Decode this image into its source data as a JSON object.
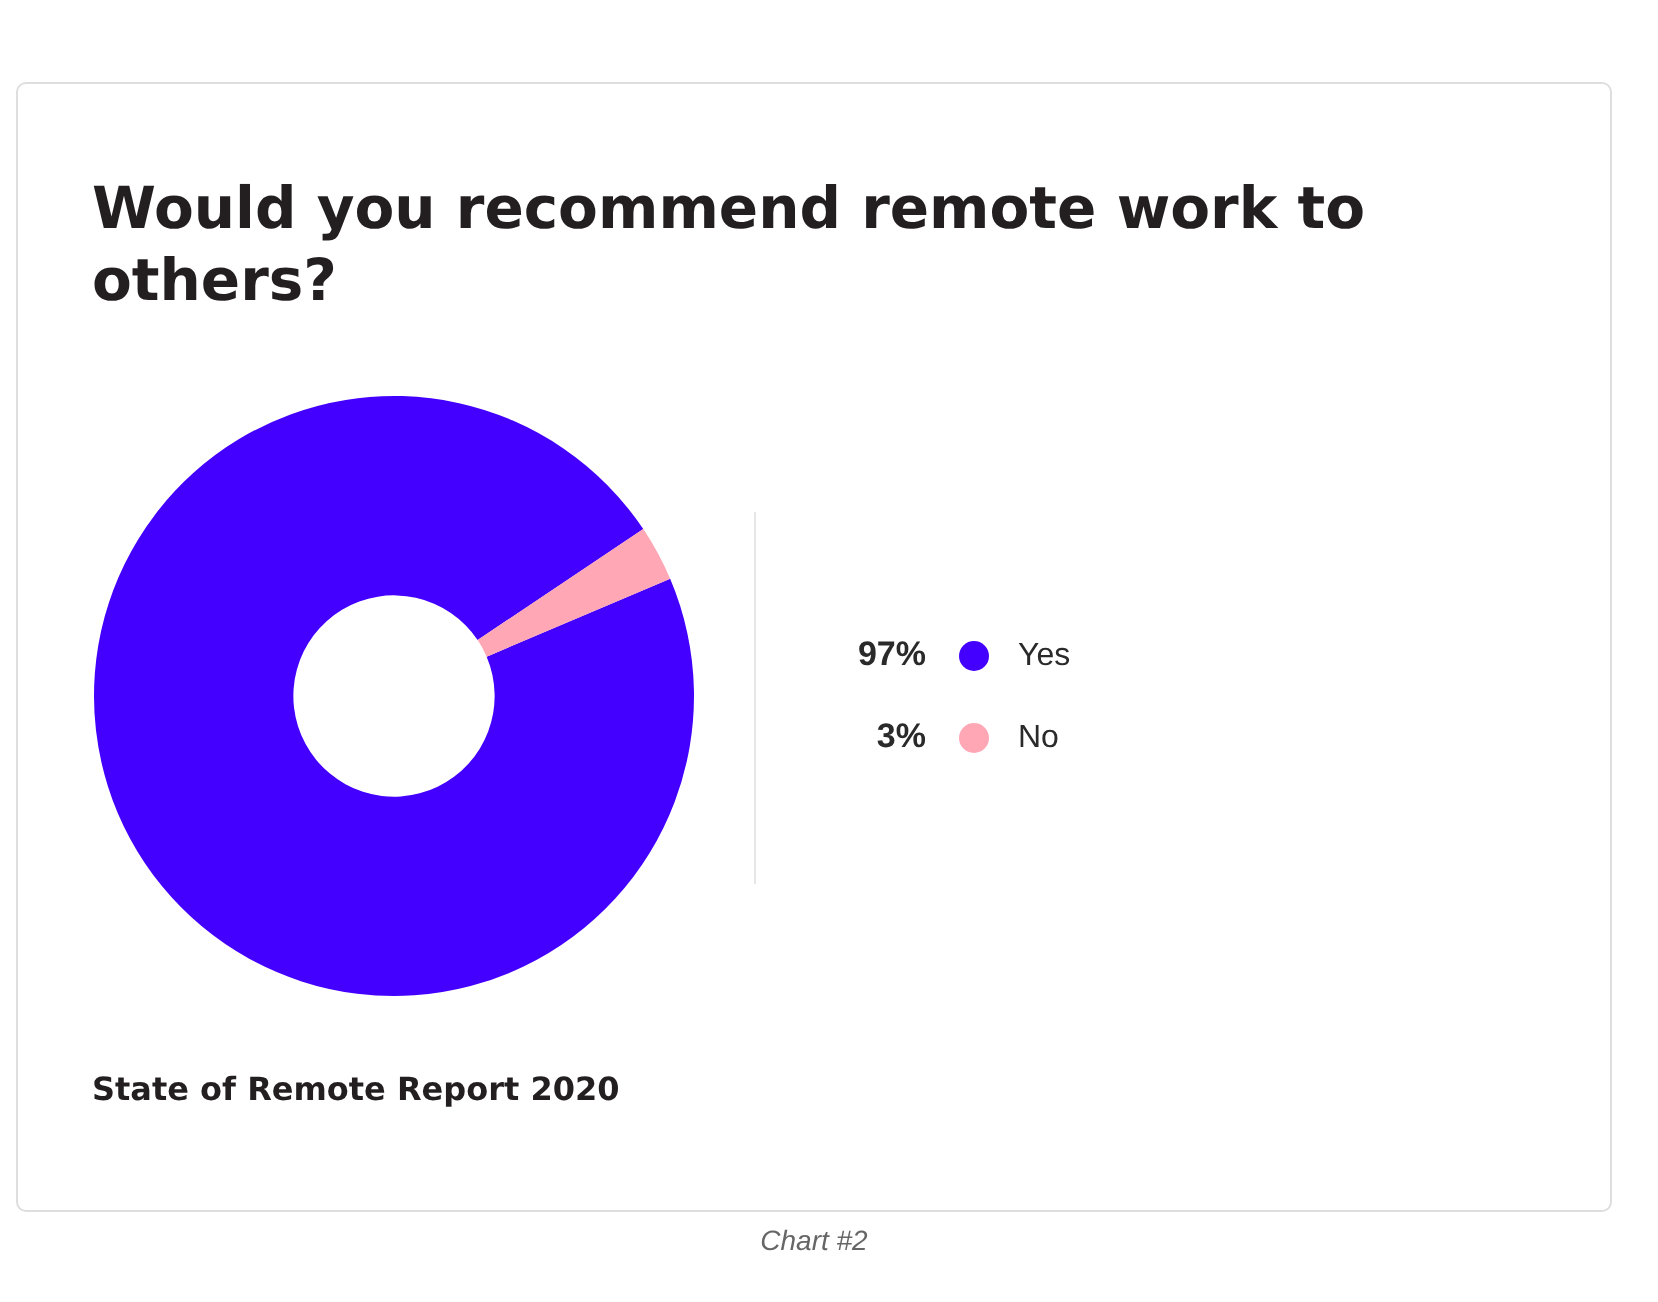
{
  "chart_data": {
    "type": "donut",
    "title": "Would you recommend remote work to others?",
    "categories": [
      "Yes",
      "No"
    ],
    "values": [
      97,
      3
    ],
    "colors": [
      "#4400ff",
      "#ffa7b5"
    ],
    "value_labels": [
      "97%",
      "3%"
    ],
    "legend": "right",
    "annotations": [
      "State of Remote Report 2020",
      "Chart #2"
    ]
  }
}
